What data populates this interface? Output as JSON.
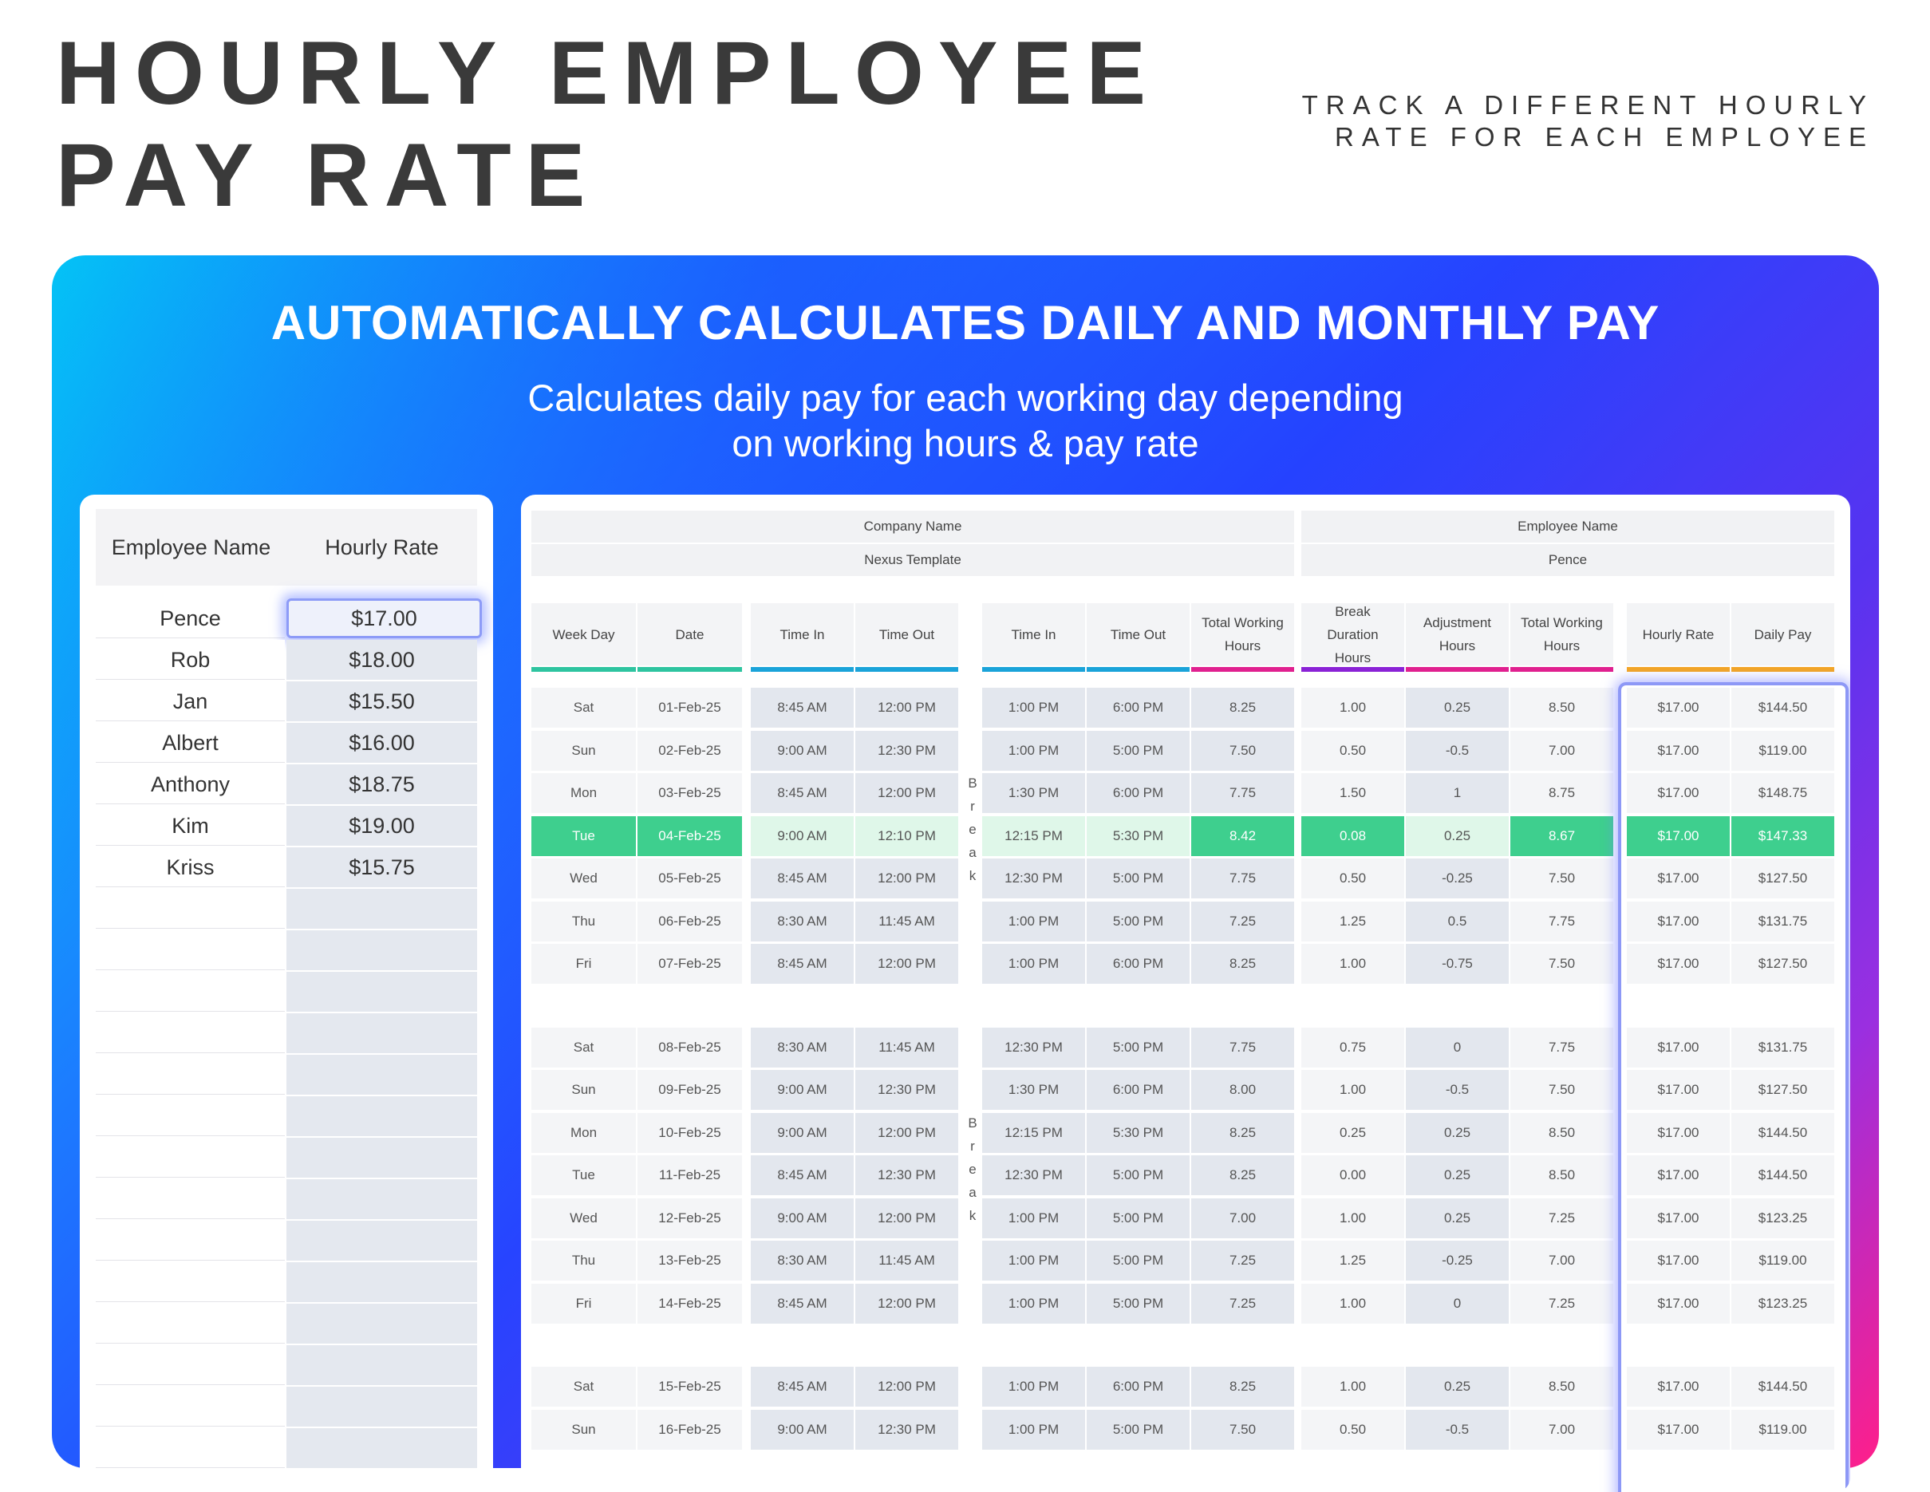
{
  "title_lines": [
    "HOURLY EMPLOYEE",
    "PAY RATE"
  ],
  "tagline_lines": [
    "TRACK A DIFFERENT HOURLY",
    "RATE FOR EACH EMPLOYEE"
  ],
  "banner": {
    "headline": "AUTOMATICALLY CALCULATES DAILY AND MONTHLY PAY",
    "subhead_lines": [
      "Calculates daily pay for each working day depending",
      "on working hours & pay rate"
    ]
  },
  "employees_table": {
    "headers": [
      "Employee Name",
      "Hourly Rate"
    ],
    "rows": [
      {
        "name": "Pence",
        "rate": "$17.00"
      },
      {
        "name": "Rob",
        "rate": "$18.00"
      },
      {
        "name": "Jan",
        "rate": "$15.50"
      },
      {
        "name": "Albert",
        "rate": "$16.00"
      },
      {
        "name": "Anthony",
        "rate": "$18.75"
      },
      {
        "name": "Kim",
        "rate": "$19.00"
      },
      {
        "name": "Kriss",
        "rate": "$15.75"
      }
    ],
    "selected_index": 0,
    "empty_rows": 14
  },
  "timesheet": {
    "company_label": "Company Name",
    "company_value": "Nexus Template",
    "employee_label": "Employee Name",
    "employee_value": "Pence",
    "columns": [
      "Week Day",
      "Date",
      "Time In",
      "Time Out",
      "Time In",
      "Time Out",
      "Total Working Hours",
      "Break Duration Hours",
      "Adjustment Hours",
      "Total Working Hours",
      "Hourly Rate",
      "Daily Pay"
    ],
    "break_label": "Break",
    "colors": {
      "bar_teal": "#2ec4a0",
      "bar_blue": "#1aa3d9",
      "bar_pink": "#e0208f",
      "bar_purple": "#8a22d6",
      "bar_orange": "#f5a623",
      "highlight_green": "#3ecf8e",
      "highlight_light": "#dff7e9"
    },
    "weeks": [
      [
        [
          "Sat",
          "01-Feb-25",
          "8:45 AM",
          "12:00 PM",
          "1:00 PM",
          "6:00 PM",
          "8.25",
          "1.00",
          "0.25",
          "8.50",
          "$17.00",
          "$144.50"
        ],
        [
          "Sun",
          "02-Feb-25",
          "9:00 AM",
          "12:30 PM",
          "1:00 PM",
          "5:00 PM",
          "7.50",
          "0.50",
          "-0.5",
          "7.00",
          "$17.00",
          "$119.00"
        ],
        [
          "Mon",
          "03-Feb-25",
          "8:45 AM",
          "12:00 PM",
          "1:30 PM",
          "6:00 PM",
          "7.75",
          "1.50",
          "1",
          "8.75",
          "$17.00",
          "$148.75"
        ],
        [
          "Tue",
          "04-Feb-25",
          "9:00 AM",
          "12:10 PM",
          "12:15 PM",
          "5:30 PM",
          "8.42",
          "0.08",
          "0.25",
          "8.67",
          "$17.00",
          "$147.33"
        ],
        [
          "Wed",
          "05-Feb-25",
          "8:45 AM",
          "12:00 PM",
          "12:30 PM",
          "5:00 PM",
          "7.75",
          "0.50",
          "-0.25",
          "7.50",
          "$17.00",
          "$127.50"
        ],
        [
          "Thu",
          "06-Feb-25",
          "8:30 AM",
          "11:45 AM",
          "1:00 PM",
          "5:00 PM",
          "7.25",
          "1.25",
          "0.5",
          "7.75",
          "$17.00",
          "$131.75"
        ],
        [
          "Fri",
          "07-Feb-25",
          "8:45 AM",
          "12:00 PM",
          "1:00 PM",
          "6:00 PM",
          "8.25",
          "1.00",
          "-0.75",
          "7.50",
          "$17.00",
          "$127.50"
        ]
      ],
      [
        [
          "Sat",
          "08-Feb-25",
          "8:30 AM",
          "11:45 AM",
          "12:30 PM",
          "5:00 PM",
          "7.75",
          "0.75",
          "0",
          "7.75",
          "$17.00",
          "$131.75"
        ],
        [
          "Sun",
          "09-Feb-25",
          "9:00 AM",
          "12:30 PM",
          "1:30 PM",
          "6:00 PM",
          "8.00",
          "1.00",
          "-0.5",
          "7.50",
          "$17.00",
          "$127.50"
        ],
        [
          "Mon",
          "10-Feb-25",
          "9:00 AM",
          "12:00 PM",
          "12:15 PM",
          "5:30 PM",
          "8.25",
          "0.25",
          "0.25",
          "8.50",
          "$17.00",
          "$144.50"
        ],
        [
          "Tue",
          "11-Feb-25",
          "8:45 AM",
          "12:30 PM",
          "12:30 PM",
          "5:00 PM",
          "8.25",
          "0.00",
          "0.25",
          "8.50",
          "$17.00",
          "$144.50"
        ],
        [
          "Wed",
          "12-Feb-25",
          "9:00 AM",
          "12:00 PM",
          "1:00 PM",
          "5:00 PM",
          "7.00",
          "1.00",
          "0.25",
          "7.25",
          "$17.00",
          "$123.25"
        ],
        [
          "Thu",
          "13-Feb-25",
          "8:30 AM",
          "11:45 AM",
          "1:00 PM",
          "5:00 PM",
          "7.25",
          "1.25",
          "-0.25",
          "7.00",
          "$17.00",
          "$119.00"
        ],
        [
          "Fri",
          "14-Feb-25",
          "8:45 AM",
          "12:00 PM",
          "1:00 PM",
          "5:00 PM",
          "7.25",
          "1.00",
          "0",
          "7.25",
          "$17.00",
          "$123.25"
        ]
      ],
      [
        [
          "Sat",
          "15-Feb-25",
          "8:45 AM",
          "12:00 PM",
          "1:00 PM",
          "6:00 PM",
          "8.25",
          "1.00",
          "0.25",
          "8.50",
          "$17.00",
          "$144.50"
        ],
        [
          "Sun",
          "16-Feb-25",
          "9:00 AM",
          "12:30 PM",
          "1:00 PM",
          "5:00 PM",
          "7.50",
          "0.50",
          "-0.5",
          "7.00",
          "$17.00",
          "$119.00"
        ]
      ]
    ],
    "highlighted_row": {
      "week": 0,
      "row": 3
    }
  }
}
